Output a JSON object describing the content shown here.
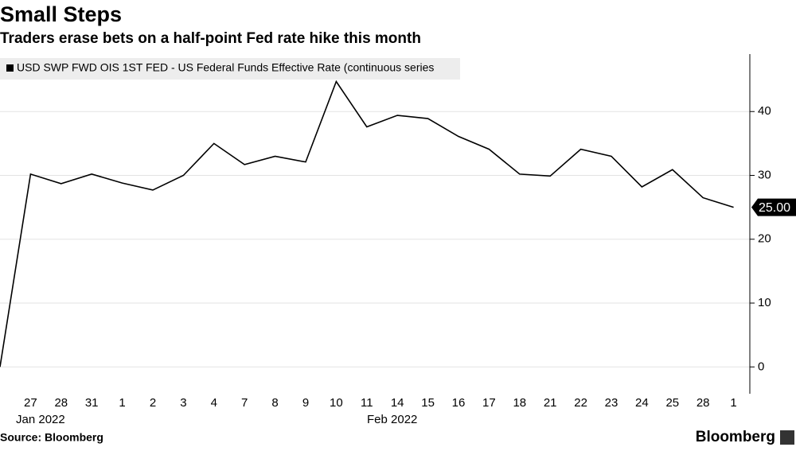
{
  "chart_data": {
    "type": "line",
    "title": "Small Steps",
    "subtitle": "Traders erase bets on a half-point Fed rate hike this month",
    "categories": [
      null,
      "27",
      "28",
      "31",
      "1",
      "2",
      "3",
      "4",
      "7",
      "8",
      "9",
      "10",
      "11",
      "14",
      "15",
      "16",
      "17",
      "18",
      "21",
      "22",
      "23",
      "24",
      "25",
      "28",
      "1"
    ],
    "x_group_labels": [
      "Jan 2022",
      "Feb 2022"
    ],
    "series": [
      {
        "name": "USD SWP FWD OIS 1ST FED - US Federal Funds Effective Rate (continuous series",
        "color": "#000000",
        "values": [
          0,
          30.2,
          28.7,
          30.2,
          28.8,
          27.7,
          30.0,
          35.0,
          31.7,
          33.0,
          32.1,
          44.7,
          37.6,
          39.4,
          38.9,
          36.1,
          34.1,
          30.2,
          29.9,
          34.1,
          33.0,
          28.2,
          30.9,
          26.5,
          25.0
        ],
        "value_labels": [
          null,
          null,
          null,
          null,
          null,
          null,
          null,
          null,
          null,
          null,
          null,
          null,
          null,
          null,
          null,
          null,
          null,
          null,
          null,
          null,
          null,
          null,
          null,
          null,
          "25.00"
        ]
      }
    ],
    "ylim": [
      -4.2,
      49
    ],
    "yticks": [
      0,
      10,
      20,
      30,
      40
    ],
    "grid": true,
    "source": "Source: Bloomberg",
    "logo": "Bloomberg"
  }
}
